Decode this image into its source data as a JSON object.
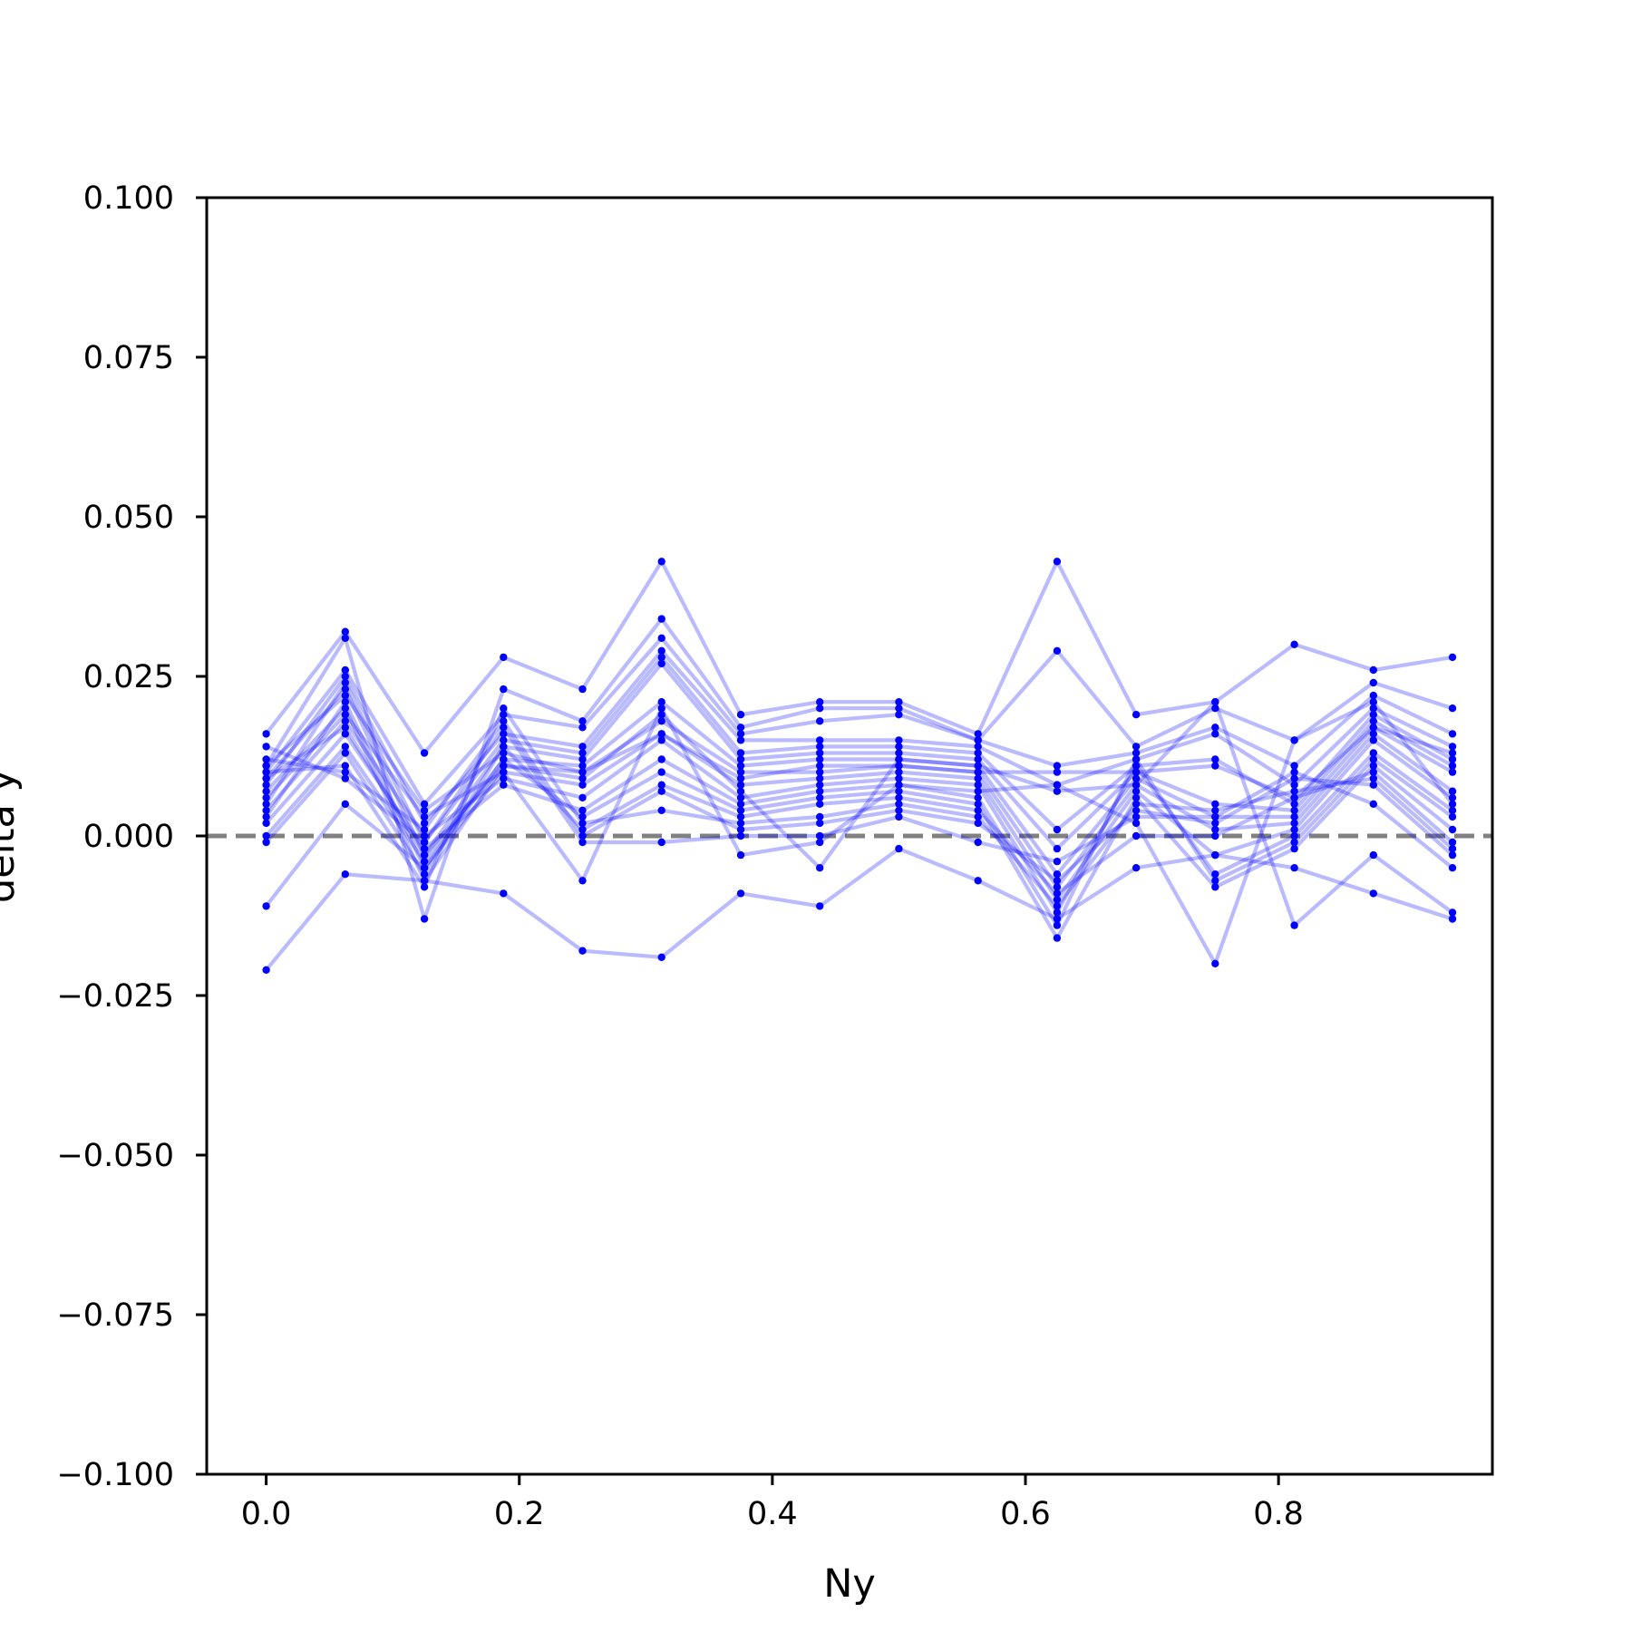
{
  "chart_data": {
    "type": "line",
    "xlabel": "Ny",
    "ylabel": "delta y",
    "xlim": [
      -0.047,
      0.969
    ],
    "ylim": [
      -0.1,
      0.1
    ],
    "x_ticks": [
      0.0,
      0.2,
      0.4,
      0.6,
      0.8
    ],
    "x_tick_labels": [
      "0.0",
      "0.2",
      "0.4",
      "0.6",
      "0.8"
    ],
    "y_ticks": [
      -0.1,
      -0.075,
      -0.05,
      -0.025,
      0.0,
      0.025,
      0.05,
      0.075,
      0.1
    ],
    "y_tick_labels": [
      "−0.100",
      "−0.075",
      "−0.050",
      "−0.025",
      "0.000",
      "0.025",
      "0.050",
      "0.075",
      "0.100"
    ],
    "grid": false,
    "reference_line": {
      "y": 0.0,
      "style": "dashed",
      "color": "#808080"
    },
    "colors": {
      "series": "#0000ff",
      "line_alpha": 0.27,
      "reference": "#808080"
    },
    "x": [
      0.0,
      0.0625,
      0.125,
      0.1875,
      0.25,
      0.3125,
      0.375,
      0.4375,
      0.5,
      0.5625,
      0.625,
      0.6875,
      0.75,
      0.8125,
      0.875,
      0.9375
    ],
    "series": [
      {
        "values": [
          0.016,
          0.032,
          0.013,
          0.028,
          0.023,
          0.043,
          0.019,
          0.021,
          0.021,
          0.016,
          0.043,
          0.019,
          0.021,
          0.03,
          0.026,
          0.028
        ]
      },
      {
        "values": [
          0.011,
          0.031,
          -0.013,
          0.023,
          0.018,
          0.034,
          0.017,
          0.02,
          0.02,
          0.015,
          0.029,
          0.014,
          0.02,
          0.015,
          0.024,
          0.02
        ]
      },
      {
        "values": [
          0.01,
          0.026,
          0.005,
          0.019,
          0.017,
          0.031,
          0.016,
          0.018,
          0.019,
          0.015,
          0.011,
          0.013,
          0.017,
          0.011,
          0.022,
          0.016
        ]
      },
      {
        "values": [
          0.008,
          0.025,
          0.002,
          0.016,
          0.014,
          0.029,
          0.015,
          0.015,
          0.015,
          0.014,
          0.008,
          0.012,
          0.016,
          0.008,
          0.02,
          0.014
        ]
      },
      {
        "values": [
          0.005,
          0.024,
          -0.001,
          0.015,
          0.013,
          0.028,
          0.013,
          0.014,
          0.014,
          0.013,
          0.001,
          0.011,
          0.012,
          0.005,
          0.019,
          0.012
        ]
      },
      {
        "values": [
          0.009,
          0.023,
          -0.003,
          0.014,
          0.012,
          0.027,
          0.012,
          0.013,
          0.013,
          0.012,
          -0.002,
          0.01,
          0.005,
          0.004,
          0.018,
          0.011
        ]
      },
      {
        "values": [
          0.003,
          0.021,
          -0.005,
          0.012,
          0.011,
          0.021,
          0.011,
          0.012,
          0.012,
          0.011,
          -0.006,
          0.009,
          0.003,
          0.003,
          0.017,
          0.01
        ]
      },
      {
        "values": [
          0.007,
          0.02,
          -0.007,
          0.011,
          0.01,
          0.018,
          0.01,
          0.01,
          0.011,
          0.01,
          -0.008,
          0.008,
          0.001,
          0.002,
          0.016,
          0.007
        ]
      },
      {
        "values": [
          0.006,
          0.019,
          0.003,
          0.01,
          0.008,
          0.016,
          0.008,
          0.009,
          0.01,
          0.009,
          -0.01,
          0.007,
          -0.003,
          0.001,
          0.015,
          0.006
        ]
      },
      {
        "values": [
          0.004,
          0.018,
          0.0,
          0.009,
          0.006,
          0.015,
          0.006,
          0.008,
          0.009,
          0.008,
          -0.012,
          0.011,
          -0.006,
          0.0,
          0.013,
          0.004
        ]
      },
      {
        "values": [
          0.002,
          0.016,
          -0.002,
          0.008,
          0.004,
          0.012,
          0.005,
          0.007,
          0.008,
          0.006,
          -0.014,
          0.012,
          -0.007,
          -0.001,
          0.012,
          0.003
        ]
      },
      {
        "values": [
          0.0,
          0.014,
          -0.004,
          0.012,
          0.003,
          0.01,
          0.004,
          0.006,
          0.007,
          0.005,
          -0.016,
          0.006,
          -0.008,
          -0.002,
          0.011,
          0.001
        ]
      },
      {
        "values": [
          -0.001,
          0.013,
          -0.006,
          0.014,
          0.001,
          0.008,
          0.003,
          0.005,
          0.006,
          0.004,
          -0.009,
          0.0,
          0.0,
          0.006,
          0.01,
          -0.001
        ]
      },
      {
        "values": [
          0.01,
          0.011,
          -0.008,
          0.02,
          0.002,
          0.004,
          0.002,
          0.003,
          0.005,
          0.003,
          -0.011,
          0.005,
          0.004,
          0.007,
          0.009,
          -0.002
        ]
      },
      {
        "values": [
          0.012,
          0.01,
          0.001,
          0.018,
          0.0,
          0.007,
          0.001,
          0.002,
          0.004,
          0.002,
          -0.007,
          0.004,
          0.002,
          0.009,
          0.008,
          -0.003
        ]
      },
      {
        "values": [
          0.014,
          0.009,
          -0.001,
          0.017,
          -0.001,
          -0.001,
          0.0,
          0.0,
          0.003,
          -0.001,
          -0.004,
          0.003,
          0.003,
          0.01,
          0.005,
          -0.005
        ]
      },
      {
        "values": [
          -0.011,
          0.005,
          -0.005,
          0.01,
          -0.007,
          0.02,
          -0.003,
          -0.001,
          0.008,
          0.007,
          0.008,
          0.002,
          -0.02,
          0.015,
          0.021,
          0.005
        ]
      },
      {
        "values": [
          -0.021,
          -0.006,
          -0.007,
          -0.009,
          -0.018,
          -0.019,
          -0.009,
          -0.011,
          -0.002,
          -0.007,
          -0.013,
          -0.005,
          -0.003,
          -0.005,
          -0.009,
          -0.013
        ]
      },
      {
        "values": [
          0.011,
          0.022,
          0.004,
          0.013,
          0.01,
          0.016,
          0.009,
          0.011,
          0.011,
          0.01,
          0.01,
          0.01,
          0.011,
          0.006,
          0.017,
          0.013
        ]
      },
      {
        "values": [
          0.009,
          0.017,
          -0.003,
          0.011,
          0.009,
          0.019,
          0.007,
          -0.005,
          0.012,
          0.011,
          0.007,
          0.008,
          0.021,
          -0.014,
          -0.003,
          -0.012
        ]
      }
    ]
  }
}
